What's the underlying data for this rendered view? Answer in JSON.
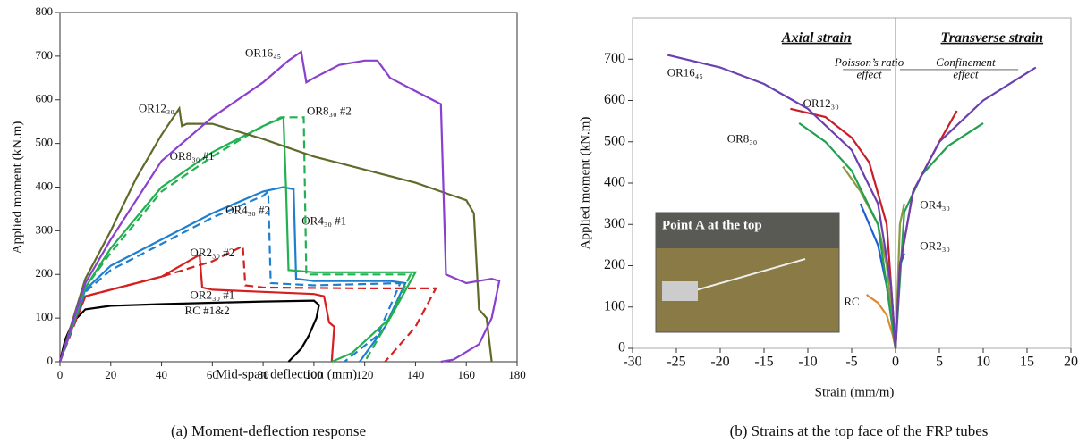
{
  "chart_data": [
    {
      "type": "line",
      "x_label": "Mid-span deflection (mm)",
      "y_label": "Applied moment (kN.m)",
      "caption": "(a)  Moment-deflection response",
      "xlim": [
        0,
        180
      ],
      "xticks": [
        0,
        20,
        40,
        60,
        80,
        100,
        120,
        140,
        160,
        180
      ],
      "ylim": [
        0,
        800
      ],
      "yticks": [
        0,
        100,
        200,
        300,
        400,
        500,
        600,
        700,
        800
      ],
      "series": [
        {
          "name": "RC #1&2",
          "color": "#000000",
          "dashed": false,
          "x": [
            0,
            2,
            5,
            10,
            20,
            40,
            60,
            80,
            100,
            102,
            101,
            98,
            95,
            90
          ],
          "values": [
            0,
            50,
            90,
            120,
            128,
            132,
            135,
            138,
            140,
            130,
            100,
            60,
            30,
            0
          ]
        },
        {
          "name": "OR2₃₀ #1",
          "color": "#d62020",
          "dashed": false,
          "x": [
            0,
            5,
            10,
            20,
            40,
            55,
            56,
            60,
            80,
            100,
            104,
            106,
            108,
            107
          ],
          "values": [
            0,
            80,
            150,
            165,
            195,
            245,
            170,
            165,
            160,
            155,
            150,
            90,
            80,
            0
          ]
        },
        {
          "name": "OR2₃₀ #2",
          "color": "#d62020",
          "dashed": true,
          "x": [
            0,
            10,
            20,
            40,
            60,
            72,
            73,
            80,
            120,
            148,
            140,
            128
          ],
          "values": [
            0,
            150,
            165,
            195,
            230,
            265,
            175,
            170,
            168,
            168,
            80,
            0
          ]
        },
        {
          "name": "OR4₃₀ #1",
          "color": "#1f7fcf",
          "dashed": false,
          "x": [
            0,
            10,
            20,
            40,
            60,
            80,
            88,
            92,
            93,
            100,
            130,
            136,
            128,
            118
          ],
          "values": [
            0,
            165,
            220,
            280,
            340,
            390,
            400,
            395,
            190,
            185,
            185,
            180,
            80,
            0
          ]
        },
        {
          "name": "OR4₃₀ #2",
          "color": "#1f7fcf",
          "dashed": true,
          "x": [
            0,
            10,
            20,
            40,
            60,
            80,
            82,
            83,
            100,
            134,
            125,
            112
          ],
          "values": [
            0,
            160,
            210,
            270,
            330,
            380,
            390,
            180,
            175,
            180,
            60,
            0
          ]
        },
        {
          "name": "OR8₃₀ #1",
          "color": "#22b050",
          "dashed": false,
          "x": [
            0,
            10,
            20,
            40,
            60,
            80,
            88,
            89,
            90,
            100,
            140,
            130,
            115,
            107
          ],
          "values": [
            0,
            170,
            260,
            400,
            480,
            540,
            560,
            400,
            210,
            205,
            205,
            100,
            20,
            0
          ]
        },
        {
          "name": "OR8₃₀ #2",
          "color": "#22b050",
          "dashed": true,
          "x": [
            0,
            10,
            20,
            40,
            60,
            80,
            87,
            96,
            97,
            100,
            138,
            130,
            120
          ],
          "values": [
            0,
            170,
            250,
            390,
            470,
            540,
            560,
            560,
            200,
            200,
            200,
            100,
            0
          ]
        },
        {
          "name": "OR12₃₀",
          "color": "#5f6b2a",
          "dashed": false,
          "x": [
            0,
            10,
            20,
            30,
            40,
            47,
            48,
            50,
            60,
            80,
            100,
            120,
            140,
            160,
            163,
            165,
            168,
            170
          ],
          "values": [
            0,
            190,
            300,
            420,
            520,
            580,
            540,
            545,
            545,
            510,
            470,
            440,
            410,
            370,
            340,
            120,
            100,
            0
          ]
        },
        {
          "name": "OR16₄₅",
          "color": "#8a3fcf",
          "dashed": false,
          "x": [
            0,
            10,
            20,
            40,
            60,
            80,
            90,
            95,
            97,
            100,
            110,
            120,
            125,
            130,
            140,
            150,
            152,
            160,
            170,
            173,
            170,
            165,
            155,
            150
          ],
          "values": [
            0,
            180,
            280,
            460,
            560,
            640,
            690,
            710,
            640,
            650,
            680,
            690,
            690,
            650,
            620,
            590,
            200,
            180,
            190,
            185,
            100,
            40,
            5,
            0
          ]
        }
      ]
    },
    {
      "type": "line",
      "x_label": "Strain (mm/m)",
      "y_label": "Applied moment  (kN.m)",
      "caption": "(b)  Strains at the top face of the FRP tubes",
      "annotations": [
        "Axial strain",
        "Transverse strain",
        "Poisson’s ratio",
        "effect",
        "Confinement",
        "effect"
      ],
      "inset_label": "Point A at the top",
      "xlim": [
        -30,
        20
      ],
      "xticks": [
        -30,
        -25,
        -20,
        -15,
        -10,
        -5,
        0,
        5,
        10,
        15,
        20
      ],
      "ylim": [
        0,
        800
      ],
      "yticks": [
        0,
        100,
        200,
        300,
        400,
        500,
        600,
        700
      ],
      "series": [
        {
          "name": "RC",
          "color": "#e08a30",
          "dashed": false,
          "x": [
            -3.3,
            -3,
            -2,
            -1,
            -0.3,
            0
          ],
          "values": [
            130,
            125,
            110,
            80,
            30,
            0
          ]
        },
        {
          "name": "OR2₃₀",
          "color": "#1f5fcf",
          "dashed": false,
          "x": [
            -4,
            -2,
            -1,
            0,
            0.5,
            1
          ],
          "values": [
            350,
            250,
            150,
            0,
            200,
            230
          ]
        },
        {
          "name": "OR4₃₀",
          "color": "#8a9a40",
          "dashed": false,
          "x": [
            -6,
            -4,
            -2,
            -1,
            0,
            0.5,
            1
          ],
          "values": [
            440,
            380,
            300,
            200,
            0,
            300,
            350
          ]
        },
        {
          "name": "OR8₃₀",
          "color": "#22a050",
          "dashed": false,
          "x": [
            -11,
            -8,
            -5,
            -2,
            0,
            1,
            3,
            6,
            10
          ],
          "values": [
            545,
            500,
            430,
            300,
            0,
            330,
            420,
            490,
            545
          ]
        },
        {
          "name": "OR12₃₀",
          "color": "#c81e28",
          "dashed": false,
          "x": [
            -12,
            -8,
            -5,
            -3,
            -1,
            0,
            0.5,
            2,
            5,
            7
          ],
          "values": [
            580,
            560,
            510,
            450,
            300,
            0,
            200,
            380,
            500,
            575
          ]
        },
        {
          "name": "OR16₄₅",
          "color": "#6a3fb0",
          "dashed": false,
          "x": [
            -26,
            -20,
            -15,
            -10,
            -5,
            -2,
            -0.5,
            0,
            0.5,
            2,
            5,
            10,
            16
          ],
          "values": [
            710,
            680,
            640,
            580,
            480,
            350,
            150,
            0,
            200,
            380,
            500,
            600,
            680
          ]
        }
      ]
    }
  ]
}
